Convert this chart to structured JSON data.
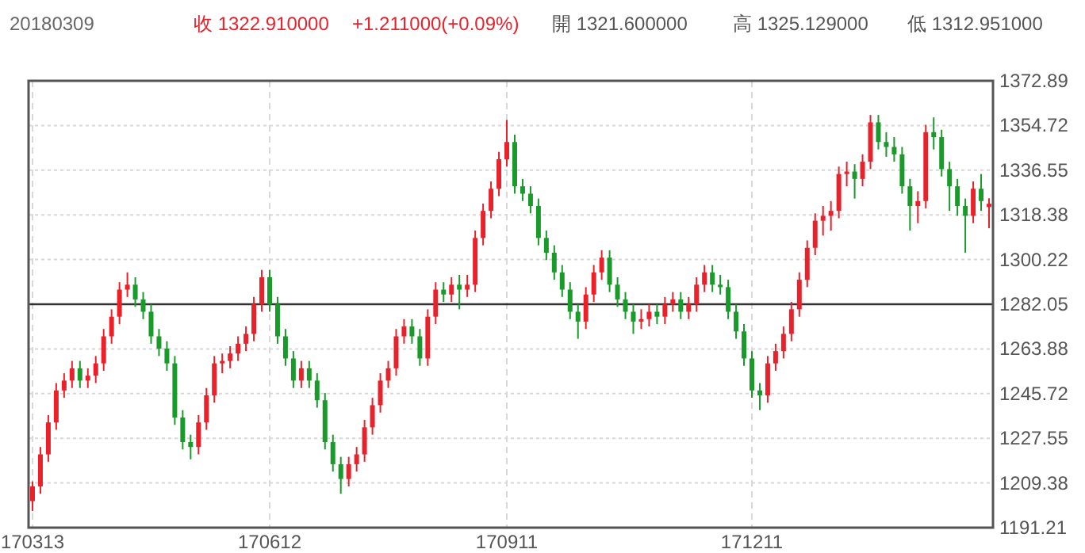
{
  "chart_data": {
    "type": "candlestick",
    "annotations": [
      "20180309",
      "收 1322.910000",
      "+1.211000(+0.09%)",
      "開 1321.600000",
      "高 1325.129000",
      "低 1312.951000"
    ],
    "categories": [
      "170313",
      null,
      null,
      null,
      null,
      null,
      null,
      null,
      null,
      null,
      null,
      null,
      null,
      null,
      null,
      null,
      null,
      null,
      null,
      null,
      null,
      null,
      null,
      null,
      null,
      null,
      null,
      null,
      null,
      null,
      "170612",
      null,
      null,
      null,
      null,
      null,
      null,
      null,
      null,
      null,
      null,
      null,
      null,
      null,
      null,
      null,
      null,
      null,
      null,
      null,
      null,
      null,
      null,
      null,
      null,
      null,
      null,
      null,
      null,
      null,
      "170911",
      null,
      null,
      null,
      null,
      null,
      null,
      null,
      null,
      null,
      null,
      null,
      null,
      null,
      null,
      null,
      null,
      null,
      null,
      null,
      null,
      null,
      null,
      null,
      null,
      null,
      null,
      null,
      null,
      null,
      null,
      "171211",
      null,
      null,
      null,
      null,
      null,
      null,
      null,
      null,
      null,
      null,
      null,
      null,
      null,
      null,
      null,
      null,
      null,
      null,
      null,
      null,
      null,
      null,
      null,
      null,
      null,
      null,
      null,
      null,
      null,
      null
    ],
    "colors": [
      "#e8212b",
      "#e8212b",
      "#e8212b",
      "#e8212b",
      "#e8212b",
      "#e8212b",
      "#1a9a2a",
      "#e8212b",
      "#e8212b",
      "#e8212b",
      "#e8212b",
      "#e8212b",
      "#e8212b",
      "#1a9a2a",
      "#1a9a2a",
      "#1a9a2a",
      "#1a9a2a",
      "#1a9a2a",
      "#1a9a2a",
      "#1a9a2a",
      "#1a9a2a",
      "#e8212b",
      "#e8212b",
      "#e8212b",
      "#e8212b",
      "#e8212b",
      "#e8212b",
      "#e8212b",
      "#e8212b",
      "#e8212b",
      "#1a9a2a",
      "#1a9a2a",
      "#1a9a2a",
      "#1a9a2a",
      "#e8212b",
      "#1a9a2a",
      "#1a9a2a",
      "#1a9a2a",
      "#1a9a2a",
      "#1a9a2a",
      "#e8212b",
      "#e8212b",
      "#e8212b",
      "#e8212b",
      "#e8212b",
      "#e8212b",
      "#e8212b",
      "#e8212b",
      "#1a9a2a",
      "#1a9a2a",
      "#e8212b",
      "#e8212b",
      "#1a9a2a",
      "#e8212b",
      "#1a9a2a",
      "#e8212b",
      "#e8212b",
      "#e8212b",
      "#e8212b",
      "#e8212b",
      "#e8212b",
      "#1a9a2a",
      "#1a9a2a",
      "#1a9a2a",
      "#1a9a2a",
      "#1a9a2a",
      "#1a9a2a",
      "#1a9a2a",
      "#1a9a2a",
      "#1a9a2a",
      "#e8212b",
      "#e8212b",
      "#e8212b",
      "#1a9a2a",
      "#1a9a2a",
      "#1a9a2a",
      "#1a9a2a",
      "#e8212b",
      "#e8212b",
      "#1a9a2a",
      "#e8212b",
      "#e8212b",
      "#1a9a2a",
      "#e8212b",
      "#e8212b",
      "#e8212b",
      "#1a9a2a",
      "#1a9a2a",
      "#1a9a2a",
      "#1a9a2a",
      "#1a9a2a",
      "#1a9a2a",
      "#1a9a2a",
      "#e8212b",
      "#e8212b",
      "#e8212b",
      "#e8212b",
      "#e8212b",
      "#e8212b",
      "#e8212b",
      "#e8212b",
      "#e8212b",
      "#e8212b",
      "#e8212b",
      "#1a9a2a",
      "#e8212b",
      "#e8212b",
      "#1a9a2a",
      "#1a9a2a",
      "#1a9a2a",
      "#1a9a2a",
      "#1a9a2a",
      "#e8212b",
      "#e8212b",
      "#1a9a2a",
      "#1a9a2a",
      "#1a9a2a",
      "#1a9a2a",
      "#1a9a2a",
      "#e8212b",
      "#1a9a2a",
      "#e8212b"
    ],
    "ohlc": [
      [
        1202,
        1210,
        1198,
        1208
      ],
      [
        1208,
        1224,
        1205,
        1221
      ],
      [
        1221,
        1237,
        1218,
        1234
      ],
      [
        1234,
        1250,
        1231,
        1247
      ],
      [
        1247,
        1254,
        1244,
        1251
      ],
      [
        1251,
        1259,
        1248,
        1256
      ],
      [
        1256,
        1259,
        1248,
        1251
      ],
      [
        1251,
        1256,
        1248,
        1253
      ],
      [
        1253,
        1261,
        1250,
        1258
      ],
      [
        1258,
        1272,
        1255,
        1269
      ],
      [
        1269,
        1280,
        1266,
        1277
      ],
      [
        1277,
        1291,
        1274,
        1288
      ],
      [
        1288,
        1295,
        1285,
        1290
      ],
      [
        1290,
        1293,
        1281,
        1284
      ],
      [
        1284,
        1287,
        1276,
        1279
      ],
      [
        1279,
        1282,
        1266,
        1269
      ],
      [
        1269,
        1272,
        1261,
        1264
      ],
      [
        1264,
        1267,
        1255,
        1258
      ],
      [
        1258,
        1261,
        1233,
        1236
      ],
      [
        1236,
        1239,
        1223,
        1226
      ],
      [
        1226,
        1229,
        1219,
        1224
      ],
      [
        1224,
        1237,
        1221,
        1234
      ],
      [
        1234,
        1248,
        1231,
        1245
      ],
      [
        1245,
        1261,
        1242,
        1258
      ],
      [
        1258,
        1262,
        1254,
        1259
      ],
      [
        1259,
        1265,
        1256,
        1262
      ],
      [
        1262,
        1269,
        1259,
        1266
      ],
      [
        1266,
        1273,
        1263,
        1270
      ],
      [
        1270,
        1285,
        1267,
        1282
      ],
      [
        1282,
        1296,
        1279,
        1293
      ],
      [
        1293,
        1296,
        1279,
        1282
      ],
      [
        1282,
        1285,
        1266,
        1269
      ],
      [
        1269,
        1272,
        1257,
        1260
      ],
      [
        1260,
        1263,
        1248,
        1251
      ],
      [
        1251,
        1259,
        1248,
        1256
      ],
      [
        1256,
        1259,
        1248,
        1251
      ],
      [
        1251,
        1254,
        1240,
        1243
      ],
      [
        1243,
        1246,
        1223,
        1226
      ],
      [
        1226,
        1229,
        1214,
        1217
      ],
      [
        1217,
        1220,
        1205,
        1211
      ],
      [
        1211,
        1220,
        1208,
        1217
      ],
      [
        1217,
        1224,
        1214,
        1221
      ],
      [
        1221,
        1235,
        1218,
        1232
      ],
      [
        1232,
        1244,
        1229,
        1241
      ],
      [
        1241,
        1254,
        1238,
        1251
      ],
      [
        1251,
        1259,
        1248,
        1256
      ],
      [
        1256,
        1272,
        1253,
        1269
      ],
      [
        1269,
        1276,
        1266,
        1273
      ],
      [
        1273,
        1276,
        1266,
        1269
      ],
      [
        1269,
        1272,
        1257,
        1260
      ],
      [
        1260,
        1280,
        1257,
        1277
      ],
      [
        1277,
        1291,
        1274,
        1288
      ],
      [
        1288,
        1291,
        1283,
        1286
      ],
      [
        1286,
        1293,
        1283,
        1290
      ],
      [
        1290,
        1294,
        1280,
        1288
      ],
      [
        1288,
        1294,
        1285,
        1290
      ],
      [
        1290,
        1312,
        1287,
        1309
      ],
      [
        1309,
        1323,
        1306,
        1320
      ],
      [
        1320,
        1332,
        1317,
        1329
      ],
      [
        1329,
        1344,
        1326,
        1341
      ],
      [
        1341,
        1357,
        1338,
        1348
      ],
      [
        1348,
        1351,
        1327,
        1330
      ],
      [
        1330,
        1333,
        1324,
        1327
      ],
      [
        1327,
        1330,
        1319,
        1322
      ],
      [
        1322,
        1325,
        1306,
        1309
      ],
      [
        1309,
        1312,
        1300,
        1303
      ],
      [
        1303,
        1306,
        1292,
        1295
      ],
      [
        1295,
        1298,
        1285,
        1288
      ],
      [
        1288,
        1291,
        1276,
        1279
      ],
      [
        1279,
        1282,
        1268,
        1275
      ],
      [
        1275,
        1289,
        1272,
        1286
      ],
      [
        1286,
        1298,
        1283,
        1295
      ],
      [
        1295,
        1304,
        1292,
        1301
      ],
      [
        1301,
        1304,
        1287,
        1290
      ],
      [
        1290,
        1293,
        1281,
        1284
      ],
      [
        1284,
        1287,
        1276,
        1279
      ],
      [
        1279,
        1282,
        1270,
        1275
      ],
      [
        1275,
        1280,
        1272,
        1276
      ],
      [
        1276,
        1282,
        1273,
        1279
      ],
      [
        1279,
        1282,
        1274,
        1277
      ],
      [
        1277,
        1285,
        1274,
        1282
      ],
      [
        1282,
        1287,
        1279,
        1284
      ],
      [
        1284,
        1287,
        1276,
        1279
      ],
      [
        1279,
        1285,
        1276,
        1282
      ],
      [
        1282,
        1293,
        1279,
        1290
      ],
      [
        1290,
        1298,
        1287,
        1295
      ],
      [
        1295,
        1298,
        1287,
        1290
      ],
      [
        1290,
        1294,
        1286,
        1289
      ],
      [
        1289,
        1292,
        1276,
        1279
      ],
      [
        1279,
        1282,
        1268,
        1271
      ],
      [
        1271,
        1274,
        1257,
        1260
      ],
      [
        1260,
        1263,
        1244,
        1247
      ],
      [
        1247,
        1250,
        1239,
        1245
      ],
      [
        1245,
        1261,
        1242,
        1258
      ],
      [
        1258,
        1266,
        1255,
        1263
      ],
      [
        1263,
        1273,
        1260,
        1270
      ],
      [
        1270,
        1283,
        1267,
        1280
      ],
      [
        1280,
        1295,
        1277,
        1292
      ],
      [
        1292,
        1308,
        1289,
        1305
      ],
      [
        1305,
        1319,
        1302,
        1316
      ],
      [
        1316,
        1322,
        1310,
        1318
      ],
      [
        1318,
        1324,
        1312,
        1320
      ],
      [
        1320,
        1338,
        1317,
        1335
      ],
      [
        1335,
        1340,
        1330,
        1336
      ],
      [
        1336,
        1339,
        1325,
        1333
      ],
      [
        1333,
        1343,
        1330,
        1340
      ],
      [
        1340,
        1359,
        1337,
        1356
      ],
      [
        1356,
        1359,
        1345,
        1348
      ],
      [
        1348,
        1352,
        1342,
        1346
      ],
      [
        1346,
        1350,
        1340,
        1343
      ],
      [
        1343,
        1346,
        1327,
        1330
      ],
      [
        1330,
        1333,
        1312,
        1322
      ],
      [
        1322,
        1328,
        1315,
        1324
      ],
      [
        1324,
        1355,
        1321,
        1352
      ],
      [
        1352,
        1358,
        1345,
        1350
      ],
      [
        1350,
        1353,
        1334,
        1337
      ],
      [
        1337,
        1340,
        1320,
        1330
      ],
      [
        1330,
        1333,
        1318,
        1322
      ],
      [
        1322,
        1325,
        1303,
        1318
      ],
      [
        1318,
        1332,
        1315,
        1329
      ],
      [
        1329,
        1335,
        1320,
        1324
      ],
      [
        1321.6,
        1325.129,
        1312.951,
        1322.91
      ]
    ],
    "ylim": [
      1191.21,
      1372.89
    ],
    "yticks": [
      1372.89,
      1354.72,
      1336.55,
      1318.38,
      1300.22,
      1282.05,
      1263.88,
      1245.72,
      1227.55,
      1209.38,
      1191.21
    ],
    "ref_lines": [
      {
        "axis": "y",
        "value": 1282.05,
        "color": "#333333"
      }
    ],
    "grid": true
  }
}
